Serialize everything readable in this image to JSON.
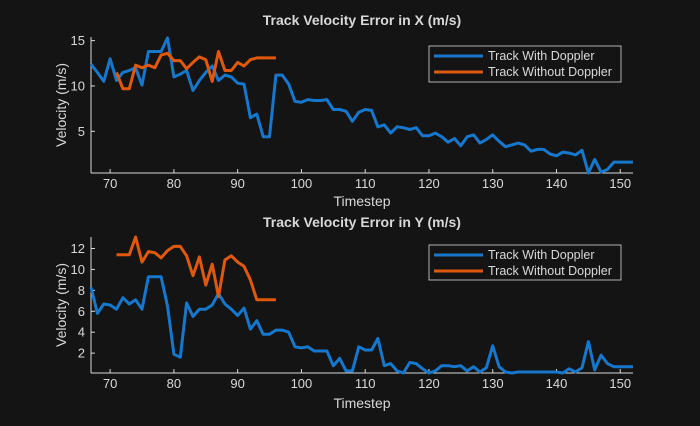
{
  "colors": {
    "background": "#141414",
    "axis": "#d9d9d9",
    "with_doppler": "#1677cc",
    "without_doppler": "#e0580d"
  },
  "chart_data": [
    {
      "type": "line",
      "title": "Track Velocity Error in X (m/s)",
      "xlabel": "Timestep",
      "ylabel": "Velocity (m/s)",
      "xlim": [
        67,
        152
      ],
      "ylim": [
        0.4,
        15.4
      ],
      "xticks": [
        70,
        80,
        90,
        100,
        110,
        120,
        130,
        140,
        150
      ],
      "yticks": [
        5,
        10,
        15
      ],
      "grid": false,
      "legend_position": "top-right",
      "series": [
        {
          "name": "Track With Doppler",
          "color": "#1677cc",
          "x_start": 67,
          "values": [
            12.4,
            11.5,
            10.5,
            13.0,
            10.6,
            11.5,
            11.7,
            12.0,
            10.1,
            13.8,
            13.8,
            13.8,
            15.3,
            11.0,
            11.3,
            11.7,
            9.5,
            10.6,
            11.5,
            12.2,
            10.6,
            11.2,
            11.0,
            10.3,
            10.2,
            6.5,
            6.9,
            4.4,
            4.4,
            11.2,
            11.2,
            10.2,
            8.3,
            8.2,
            8.5,
            8.4,
            8.4,
            8.5,
            7.4,
            7.4,
            7.2,
            6.1,
            7.1,
            7.4,
            7.3,
            5.5,
            5.7,
            4.8,
            5.5,
            5.4,
            5.2,
            5.4,
            4.5,
            4.5,
            4.8,
            4.4,
            3.8,
            4.2,
            3.4,
            4.4,
            4.6,
            3.7,
            4.1,
            4.6,
            3.9,
            3.3,
            3.5,
            3.7,
            3.5,
            2.8,
            3.0,
            3.0,
            2.5,
            2.3,
            2.7,
            2.6,
            2.4,
            2.9,
            0.4,
            1.9,
            0.5,
            0.8,
            1.6,
            1.6,
            1.6,
            1.6
          ]
        },
        {
          "name": "Track Without Doppler",
          "color": "#e0580d",
          "x_start": 71,
          "values": [
            11.5,
            9.7,
            9.7,
            12.3,
            12.0,
            12.3,
            12.0,
            13.4,
            13.6,
            12.8,
            12.8,
            11.9,
            12.6,
            13.2,
            12.9,
            10.5,
            13.8,
            11.7,
            11.7,
            12.6,
            12.2,
            12.9,
            13.1,
            13.1,
            13.1,
            13.1
          ]
        }
      ]
    },
    {
      "type": "line",
      "title": "Track Velocity Error in Y (m/s)",
      "xlabel": "Timestep",
      "ylabel": "Velocity (m/s)",
      "xlim": [
        67,
        152
      ],
      "ylim": [
        0.1,
        13.1
      ],
      "xticks": [
        70,
        80,
        90,
        100,
        110,
        120,
        130,
        140,
        150
      ],
      "yticks": [
        2,
        4,
        6,
        8,
        10,
        12
      ],
      "grid": false,
      "legend_position": "top-right",
      "series": [
        {
          "name": "Track With Doppler",
          "color": "#1677cc",
          "x_start": 67,
          "values": [
            8.3,
            5.8,
            6.7,
            6.6,
            6.2,
            7.3,
            6.7,
            7.1,
            6.2,
            9.3,
            9.3,
            9.3,
            6.5,
            1.9,
            1.6,
            6.8,
            5.5,
            6.2,
            6.2,
            6.6,
            7.7,
            6.7,
            6.2,
            5.6,
            6.3,
            4.3,
            5.1,
            3.8,
            3.8,
            4.2,
            4.2,
            4.0,
            2.6,
            2.5,
            2.6,
            2.2,
            2.2,
            2.2,
            0.8,
            1.5,
            0.3,
            0.3,
            2.6,
            2.3,
            2.3,
            3.4,
            0.8,
            1.0,
            0.3,
            0.1,
            1.1,
            1.0,
            0.5,
            0.1,
            0.3,
            0.8,
            0.8,
            0.7,
            0.8,
            0.3,
            0.7,
            0.2,
            0.6,
            2.7,
            0.7,
            0.2,
            0.1,
            0.2,
            0.2,
            0.2,
            0.2,
            0.2,
            0.2,
            0.2,
            0.1,
            0.5,
            0.2,
            0.6,
            3.1,
            0.4,
            1.8,
            1.0,
            0.7,
            0.7,
            0.7,
            0.7
          ]
        },
        {
          "name": "Track Without Doppler",
          "color": "#e0580d",
          "x_start": 71,
          "values": [
            11.4,
            11.4,
            11.4,
            13.1,
            10.7,
            11.7,
            11.6,
            11.1,
            11.8,
            12.2,
            12.2,
            11.3,
            9.4,
            11.2,
            8.5,
            10.5,
            7.4,
            10.9,
            11.3,
            10.7,
            10.3,
            9.0,
            7.1,
            7.1,
            7.1,
            7.1
          ]
        }
      ]
    }
  ]
}
